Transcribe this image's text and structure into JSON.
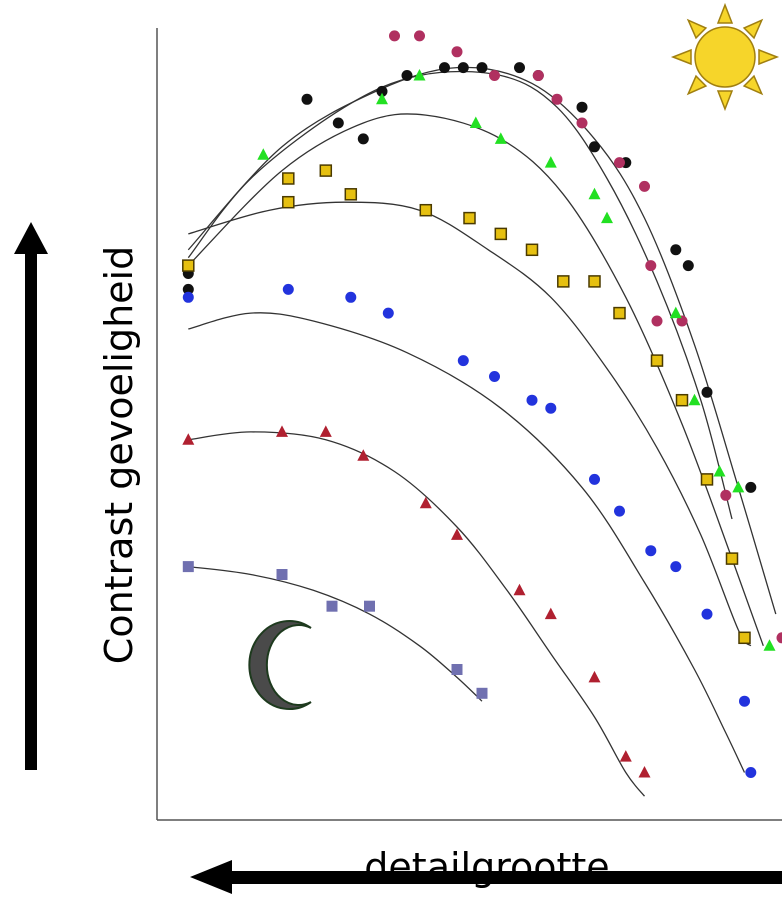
{
  "chart_data": {
    "type": "scatter",
    "title": "",
    "xlabel": "detailgrootte",
    "ylabel": "Contrast gevoeligheid",
    "x_direction_arrow": "right-to-left",
    "y_direction_arrow": "up",
    "grid": false,
    "legend": "none",
    "x_ticks": [],
    "y_ticks": [],
    "xlim": [
      0,
      100
    ],
    "ylim": [
      0,
      100
    ],
    "icons": [
      "sun-icon",
      "moon-icon"
    ],
    "series": [
      {
        "marker": "circle",
        "color": "#111111",
        "points": [
          [
            5,
            69
          ],
          [
            5,
            67
          ],
          [
            24,
            91
          ],
          [
            29,
            88
          ],
          [
            33,
            86
          ],
          [
            36,
            92
          ],
          [
            40,
            94
          ],
          [
            46,
            95
          ],
          [
            49,
            95
          ],
          [
            52,
            95
          ],
          [
            58,
            95
          ],
          [
            61,
            94
          ],
          [
            68,
            90
          ],
          [
            70,
            85
          ],
          [
            75,
            83
          ],
          [
            83,
            72
          ],
          [
            85,
            70
          ],
          [
            88,
            54
          ],
          [
            95,
            42
          ]
        ],
        "curve": [
          [
            5,
            71
          ],
          [
            15,
            81
          ],
          [
            30,
            90
          ],
          [
            42,
            94
          ],
          [
            55,
            94
          ],
          [
            64,
            90
          ],
          [
            72,
            81
          ],
          [
            80,
            68
          ],
          [
            87,
            53
          ],
          [
            92,
            38
          ]
        ]
      },
      {
        "marker": "circle",
        "color": "#B03060",
        "points": [
          [
            38,
            99
          ],
          [
            42,
            99
          ],
          [
            48,
            97
          ],
          [
            54,
            94
          ],
          [
            61,
            94
          ],
          [
            64,
            91
          ],
          [
            68,
            88
          ],
          [
            74,
            83
          ],
          [
            78,
            80
          ],
          [
            79,
            70
          ],
          [
            80,
            63
          ],
          [
            84,
            63
          ],
          [
            91,
            41
          ],
          [
            100,
            23
          ]
        ],
        "curve": [
          [
            5,
            72
          ],
          [
            20,
            85
          ],
          [
            35,
            92
          ],
          [
            48,
            95
          ],
          [
            60,
            93
          ],
          [
            70,
            86
          ],
          [
            78,
            76
          ],
          [
            86,
            60
          ],
          [
            93,
            42
          ],
          [
            99,
            26
          ]
        ]
      },
      {
        "marker": "triangle",
        "color": "#22E022",
        "points": [
          [
            17,
            84
          ],
          [
            36,
            91
          ],
          [
            42,
            94
          ],
          [
            51,
            88
          ],
          [
            55,
            86
          ],
          [
            63,
            83
          ],
          [
            70,
            79
          ],
          [
            72,
            76
          ],
          [
            83,
            64
          ],
          [
            86,
            53
          ],
          [
            90,
            44
          ],
          [
            93,
            42
          ],
          [
            98,
            22
          ]
        ],
        "curve": [
          [
            5,
            70
          ],
          [
            20,
            82
          ],
          [
            33,
            88
          ],
          [
            43,
            89
          ],
          [
            55,
            86
          ],
          [
            65,
            79
          ],
          [
            75,
            66
          ],
          [
            84,
            50
          ],
          [
            92,
            33
          ],
          [
            97,
            22
          ]
        ]
      },
      {
        "marker": "square",
        "color": "#E6C010",
        "points": [
          [
            5,
            70
          ],
          [
            21,
            81
          ],
          [
            27,
            82
          ],
          [
            21,
            78
          ],
          [
            31,
            79
          ],
          [
            43,
            77
          ],
          [
            50,
            76
          ],
          [
            55,
            74
          ],
          [
            60,
            72
          ],
          [
            65,
            68
          ],
          [
            70,
            68
          ],
          [
            74,
            64
          ],
          [
            80,
            58
          ],
          [
            84,
            53
          ],
          [
            88,
            43
          ],
          [
            92,
            33
          ],
          [
            94,
            23
          ]
        ],
        "curve": [
          [
            5,
            74
          ],
          [
            18,
            77
          ],
          [
            30,
            78
          ],
          [
            42,
            77
          ],
          [
            53,
            72
          ],
          [
            63,
            66
          ],
          [
            72,
            57
          ],
          [
            80,
            47
          ],
          [
            87,
            36
          ],
          [
            93,
            24
          ],
          [
            95,
            22
          ]
        ]
      },
      {
        "marker": "circle",
        "color": "#2233DD",
        "points": [
          [
            5,
            66
          ],
          [
            21,
            67
          ],
          [
            31,
            66
          ],
          [
            37,
            64
          ],
          [
            49,
            58
          ],
          [
            54,
            56
          ],
          [
            60,
            53
          ],
          [
            63,
            52
          ],
          [
            70,
            43
          ],
          [
            74,
            39
          ],
          [
            79,
            34
          ],
          [
            83,
            32
          ],
          [
            88,
            26
          ],
          [
            94,
            15
          ],
          [
            95,
            6
          ]
        ],
        "curve": [
          [
            5,
            62
          ],
          [
            15,
            64
          ],
          [
            25,
            63
          ],
          [
            40,
            59
          ],
          [
            55,
            52
          ],
          [
            68,
            42
          ],
          [
            78,
            30
          ],
          [
            86,
            19
          ],
          [
            91,
            11
          ],
          [
            94,
            6
          ]
        ]
      },
      {
        "marker": "triangle",
        "color": "#B02030",
        "points": [
          [
            5,
            48
          ],
          [
            20,
            49
          ],
          [
            27,
            49
          ],
          [
            33,
            46
          ],
          [
            43,
            40
          ],
          [
            48,
            36
          ],
          [
            58,
            29
          ],
          [
            63,
            26
          ],
          [
            70,
            18
          ],
          [
            75,
            8
          ],
          [
            78,
            6
          ]
        ],
        "curve": [
          [
            5,
            48
          ],
          [
            15,
            49
          ],
          [
            27,
            48
          ],
          [
            38,
            44
          ],
          [
            48,
            37
          ],
          [
            56,
            29
          ],
          [
            63,
            21
          ],
          [
            70,
            13
          ],
          [
            75,
            6
          ],
          [
            78,
            3
          ]
        ]
      },
      {
        "marker": "square",
        "color": "#7070B0",
        "points": [
          [
            5,
            32
          ],
          [
            20,
            31
          ],
          [
            28,
            27
          ],
          [
            34,
            27
          ],
          [
            48,
            19
          ],
          [
            52,
            16
          ]
        ],
        "curve": [
          [
            5,
            32
          ],
          [
            15,
            31
          ],
          [
            25,
            29
          ],
          [
            34,
            26
          ],
          [
            42,
            22
          ],
          [
            48,
            18
          ],
          [
            52,
            15
          ]
        ]
      }
    ]
  }
}
